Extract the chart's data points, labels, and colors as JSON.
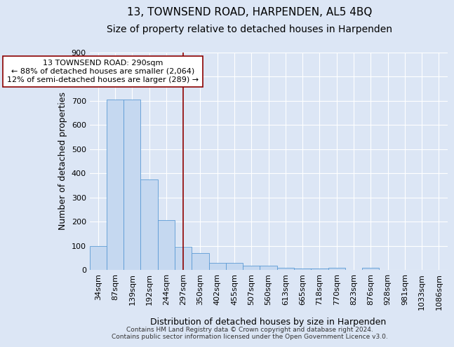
{
  "title": "13, TOWNSEND ROAD, HARPENDEN, AL5 4BQ",
  "subtitle": "Size of property relative to detached houses in Harpenden",
  "xlabel": "Distribution of detached houses by size in Harpenden",
  "ylabel": "Number of detached properties",
  "categories": [
    "34sqm",
    "87sqm",
    "139sqm",
    "192sqm",
    "244sqm",
    "297sqm",
    "350sqm",
    "402sqm",
    "455sqm",
    "507sqm",
    "560sqm",
    "613sqm",
    "665sqm",
    "718sqm",
    "770sqm",
    "823sqm",
    "876sqm",
    "928sqm",
    "981sqm",
    "1033sqm",
    "1086sqm"
  ],
  "values": [
    100,
    705,
    705,
    375,
    205,
    95,
    70,
    28,
    30,
    18,
    18,
    10,
    7,
    7,
    10,
    0,
    8,
    0,
    0,
    0,
    0
  ],
  "bar_color": "#c5d8f0",
  "bar_edge_color": "#5b9bd5",
  "vline_x_index": 5,
  "vline_color": "#8b0000",
  "annotation_line1": "13 TOWNSEND ROAD: 290sqm",
  "annotation_line2": "← 88% of detached houses are smaller (2,064)",
  "annotation_line3": "12% of semi-detached houses are larger (289) →",
  "annotation_box_color": "white",
  "annotation_box_edge_color": "#8b0000",
  "annotation_fontsize": 8.0,
  "ylim": [
    0,
    900
  ],
  "yticks": [
    0,
    100,
    200,
    300,
    400,
    500,
    600,
    700,
    800,
    900
  ],
  "title_fontsize": 11,
  "subtitle_fontsize": 10,
  "xlabel_fontsize": 9,
  "ylabel_fontsize": 9,
  "tick_fontsize": 8,
  "footer_text": "Contains HM Land Registry data © Crown copyright and database right 2024.\nContains public sector information licensed under the Open Government Licence v3.0.",
  "bg_color": "#dce6f5",
  "plot_bg_color": "#dce6f5",
  "grid_color": "white"
}
